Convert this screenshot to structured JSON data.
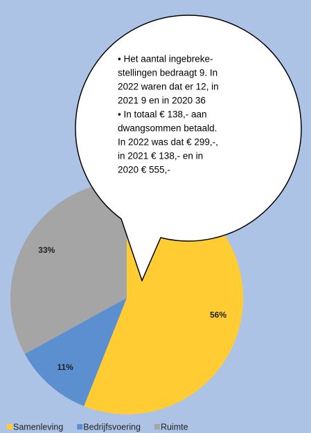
{
  "chart_data": {
    "type": "pie",
    "categories": [
      "Samenleving",
      "Bedrijfsvoering",
      "Ruimte"
    ],
    "values": [
      56,
      11,
      33
    ],
    "value_labels": [
      "56%",
      "11%",
      "33%"
    ],
    "colors": [
      "#ffcc33",
      "#5b8fcf",
      "#a5a5a5"
    ],
    "legend": "bottom",
    "annotation": [
      "• Het aantal ingebreke-",
      "stellingen bedraagt 9. In",
      "2022 waren dat er 12, in",
      "2021 9 en in 2020 36",
      "• In totaal € 138,- aan",
      "dwangsommen betaald.",
      "In 2022 was dat € 299,-,",
      "in 2021 € 138,- en in",
      "2020 € 555,-"
    ]
  }
}
